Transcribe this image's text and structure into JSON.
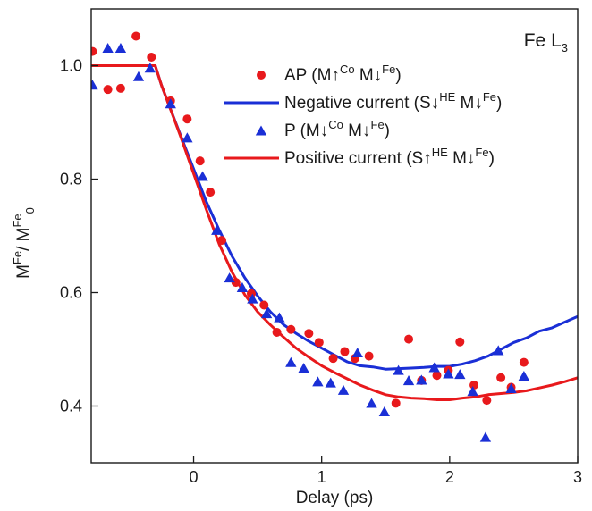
{
  "chart_data": {
    "type": "scatter",
    "xlabel": "Delay (ps)",
    "ylabel": {
      "base": "M",
      "sup": "Fe",
      "slash": "/ M",
      "sub": "0",
      "sup2": "Fe"
    },
    "annotation": {
      "text": "Fe L",
      "sub": "3"
    },
    "xlim": [
      -0.8,
      3.0
    ],
    "ylim": [
      0.3,
      1.1
    ],
    "xticks": [
      {
        "v": 0,
        "label": "0"
      },
      {
        "v": 1,
        "label": "1"
      },
      {
        "v": 2,
        "label": "2"
      },
      {
        "v": 3,
        "label": "3"
      }
    ],
    "yticks": [
      {
        "v": 0.4,
        "label": "0.4"
      },
      {
        "v": 0.6,
        "label": "0.6"
      },
      {
        "v": 0.8,
        "label": "0.8"
      },
      {
        "v": 1.0,
        "label": "1.0"
      }
    ],
    "legend": [
      {
        "key": "ap",
        "kind": "marker-circle",
        "color": "#e8191c",
        "parts": [
          {
            "t": "AP (M↑"
          },
          {
            "t": "Co",
            "sup": true
          },
          {
            "t": " M↓"
          },
          {
            "t": "Fe",
            "sup": true
          },
          {
            "t": ")"
          }
        ]
      },
      {
        "key": "neg",
        "kind": "line",
        "color": "#1a2fd6",
        "parts": [
          {
            "t": "Negative current (S↓"
          },
          {
            "t": "HE",
            "sup": true
          },
          {
            "t": " M↓"
          },
          {
            "t": "Fe",
            "sup": true
          },
          {
            "t": ")"
          }
        ]
      },
      {
        "key": "p",
        "kind": "marker-triangle",
        "color": "#1a2fd6",
        "parts": [
          {
            "t": "P (M↓"
          },
          {
            "t": "Co",
            "sup": true
          },
          {
            "t": " M↓"
          },
          {
            "t": "Fe",
            "sup": true
          },
          {
            "t": ")"
          }
        ]
      },
      {
        "key": "pos",
        "kind": "line",
        "color": "#e8191c",
        "parts": [
          {
            "t": "Positive current (S↑"
          },
          {
            "t": "HE",
            "sup": true
          },
          {
            "t": " M↓"
          },
          {
            "t": "Fe",
            "sup": true
          },
          {
            "t": ")"
          }
        ]
      }
    ],
    "series": [
      {
        "name": "AP (M↑Co M↓Fe)",
        "kind": "scatter",
        "marker": "circle",
        "color": "#e8191c",
        "points": [
          [
            -0.79,
            1.025
          ],
          [
            -0.67,
            0.958
          ],
          [
            -0.57,
            0.96
          ],
          [
            -0.45,
            1.052
          ],
          [
            -0.33,
            1.015
          ],
          [
            -0.18,
            0.938
          ],
          [
            -0.05,
            0.906
          ],
          [
            0.05,
            0.832
          ],
          [
            0.13,
            0.777
          ],
          [
            0.22,
            0.692
          ],
          [
            0.33,
            0.618
          ],
          [
            0.45,
            0.598
          ],
          [
            0.55,
            0.578
          ],
          [
            0.65,
            0.53
          ],
          [
            0.76,
            0.535
          ],
          [
            0.9,
            0.528
          ],
          [
            0.98,
            0.512
          ],
          [
            1.09,
            0.484
          ],
          [
            1.18,
            0.496
          ],
          [
            1.26,
            0.484
          ],
          [
            1.37,
            0.488
          ],
          [
            1.58,
            0.405
          ],
          [
            1.68,
            0.518
          ],
          [
            1.78,
            0.445
          ],
          [
            1.9,
            0.454
          ],
          [
            1.99,
            0.463
          ],
          [
            2.08,
            0.513
          ],
          [
            2.19,
            0.437
          ],
          [
            2.29,
            0.41
          ],
          [
            2.4,
            0.45
          ],
          [
            2.48,
            0.433
          ],
          [
            2.58,
            0.477
          ]
        ]
      },
      {
        "name": "P (M↓Co M↓Fe)",
        "kind": "scatter",
        "marker": "triangle",
        "color": "#1a2fd6",
        "points": [
          [
            -0.79,
            0.965
          ],
          [
            -0.67,
            1.03
          ],
          [
            -0.57,
            1.03
          ],
          [
            -0.43,
            0.98
          ],
          [
            -0.34,
            0.995
          ],
          [
            -0.18,
            0.932
          ],
          [
            -0.05,
            0.872
          ],
          [
            0.07,
            0.804
          ],
          [
            0.18,
            0.709
          ],
          [
            0.28,
            0.625
          ],
          [
            0.38,
            0.608
          ],
          [
            0.46,
            0.588
          ],
          [
            0.57,
            0.562
          ],
          [
            0.67,
            0.555
          ],
          [
            0.76,
            0.476
          ],
          [
            0.86,
            0.466
          ],
          [
            0.97,
            0.442
          ],
          [
            1.07,
            0.44
          ],
          [
            1.17,
            0.427
          ],
          [
            1.28,
            0.493
          ],
          [
            1.39,
            0.404
          ],
          [
            1.49,
            0.389
          ],
          [
            1.6,
            0.462
          ],
          [
            1.68,
            0.444
          ],
          [
            1.78,
            0.445
          ],
          [
            1.88,
            0.467
          ],
          [
            1.99,
            0.456
          ],
          [
            2.08,
            0.455
          ],
          [
            2.18,
            0.425
          ],
          [
            2.28,
            0.344
          ],
          [
            2.38,
            0.497
          ],
          [
            2.48,
            0.43
          ],
          [
            2.58,
            0.452
          ]
        ]
      },
      {
        "name": "Negative current (S↓HE M↓Fe)",
        "kind": "line",
        "color": "#1a2fd6",
        "points": [
          [
            -0.8,
            1.0
          ],
          [
            -0.3,
            1.0
          ],
          [
            -0.25,
            0.965
          ],
          [
            -0.2,
            0.935
          ],
          [
            -0.1,
            0.876
          ],
          [
            0.0,
            0.818
          ],
          [
            0.1,
            0.76
          ],
          [
            0.2,
            0.71
          ],
          [
            0.3,
            0.664
          ],
          [
            0.4,
            0.626
          ],
          [
            0.5,
            0.594
          ],
          [
            0.6,
            0.566
          ],
          [
            0.7,
            0.544
          ],
          [
            0.8,
            0.528
          ],
          [
            0.9,
            0.514
          ],
          [
            1.0,
            0.502
          ],
          [
            1.1,
            0.49
          ],
          [
            1.2,
            0.478
          ],
          [
            1.3,
            0.471
          ],
          [
            1.4,
            0.469
          ],
          [
            1.5,
            0.465
          ],
          [
            1.6,
            0.466
          ],
          [
            1.7,
            0.467
          ],
          [
            1.8,
            0.468
          ],
          [
            1.9,
            0.47
          ],
          [
            2.0,
            0.47
          ],
          [
            2.1,
            0.474
          ],
          [
            2.2,
            0.48
          ],
          [
            2.3,
            0.488
          ],
          [
            2.4,
            0.5
          ],
          [
            2.5,
            0.512
          ],
          [
            2.6,
            0.52
          ],
          [
            2.7,
            0.532
          ],
          [
            2.8,
            0.538
          ],
          [
            2.9,
            0.548
          ],
          [
            3.0,
            0.558
          ]
        ]
      },
      {
        "name": "Positive current (S↑HE M↓Fe)",
        "kind": "line",
        "color": "#e8191c",
        "points": [
          [
            -0.8,
            1.0
          ],
          [
            -0.3,
            1.0
          ],
          [
            -0.25,
            0.965
          ],
          [
            -0.2,
            0.935
          ],
          [
            -0.1,
            0.874
          ],
          [
            0.0,
            0.81
          ],
          [
            0.1,
            0.746
          ],
          [
            0.2,
            0.685
          ],
          [
            0.3,
            0.636
          ],
          [
            0.4,
            0.596
          ],
          [
            0.5,
            0.566
          ],
          [
            0.6,
            0.543
          ],
          [
            0.7,
            0.522
          ],
          [
            0.8,
            0.502
          ],
          [
            0.9,
            0.486
          ],
          [
            1.0,
            0.471
          ],
          [
            1.1,
            0.459
          ],
          [
            1.2,
            0.448
          ],
          [
            1.3,
            0.437
          ],
          [
            1.4,
            0.428
          ],
          [
            1.5,
            0.42
          ],
          [
            1.6,
            0.416
          ],
          [
            1.7,
            0.414
          ],
          [
            1.8,
            0.413
          ],
          [
            1.9,
            0.411
          ],
          [
            2.0,
            0.411
          ],
          [
            2.1,
            0.414
          ],
          [
            2.2,
            0.416
          ],
          [
            2.3,
            0.42
          ],
          [
            2.4,
            0.422
          ],
          [
            2.5,
            0.424
          ],
          [
            2.6,
            0.427
          ],
          [
            2.7,
            0.432
          ],
          [
            2.8,
            0.437
          ],
          [
            2.9,
            0.443
          ],
          [
            3.0,
            0.45
          ]
        ]
      }
    ]
  }
}
